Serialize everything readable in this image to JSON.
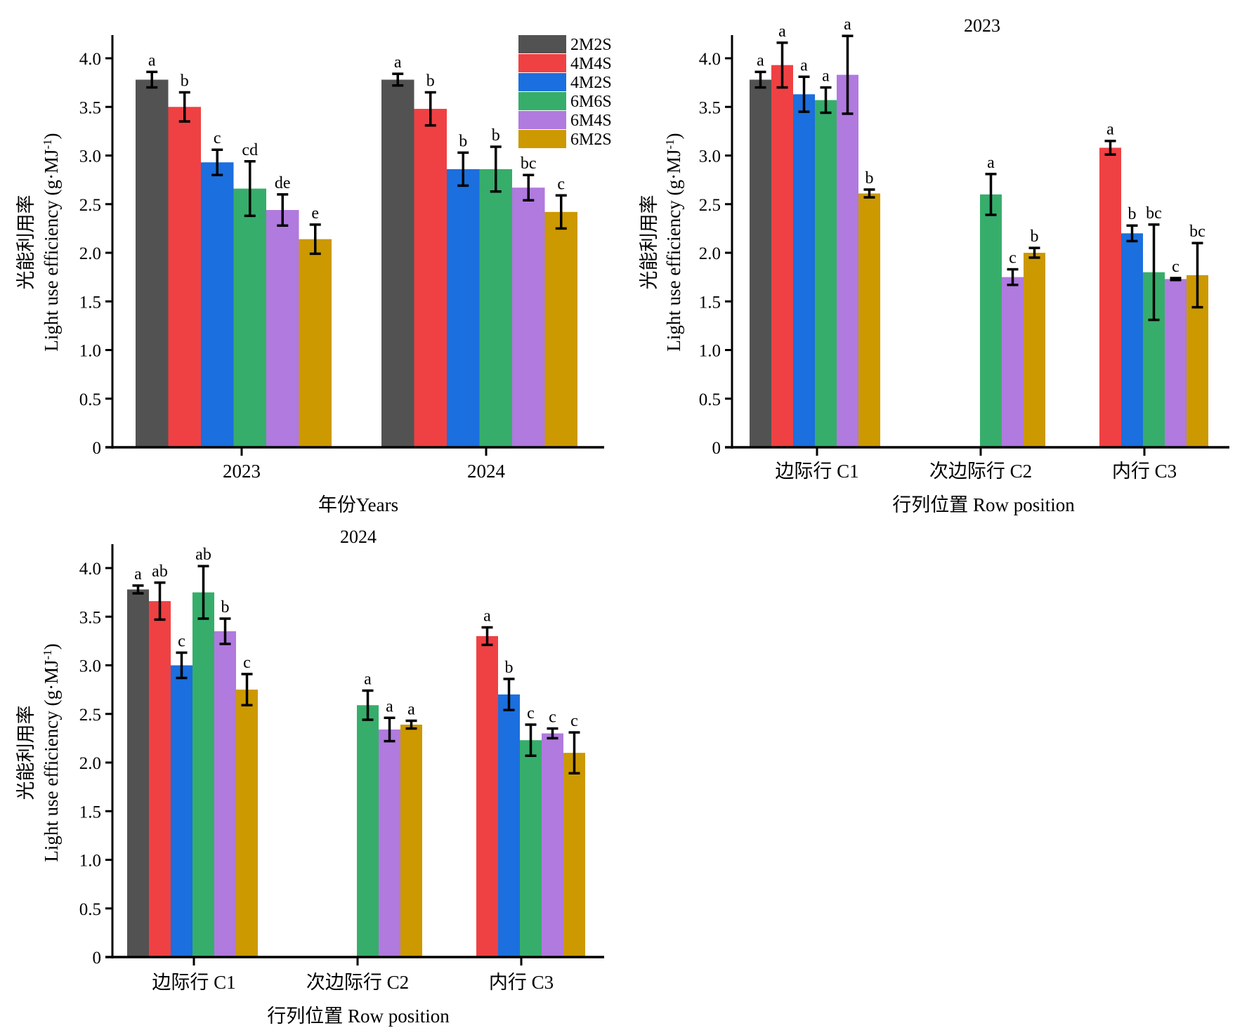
{
  "colors": {
    "2M2S": "#525252",
    "4M4S": "#ef4143",
    "4M2S": "#1b6fde",
    "6M6S": "#37ad6b",
    "6M4S": "#b07ade",
    "6M2S": "#cc9900"
  },
  "legend": {
    "placement": "top-right of first panel",
    "entries": [
      "2M2S",
      "4M4S",
      "4M2S",
      "6M6S",
      "6M4S",
      "6M2S"
    ]
  },
  "chart_data": [
    {
      "id": "years",
      "type": "bar",
      "title": "",
      "xlabel": "年份Years",
      "ylabel_cn": "光能利用率",
      "ylabel_en": "Light use efficiency (g·MJ",
      "ylabel_sup": "-1",
      "ylabel_close": ")",
      "ylim": [
        0,
        4.25
      ],
      "yticks": [
        0,
        0.5,
        1.0,
        1.5,
        2.0,
        2.5,
        3.0,
        3.5,
        4.0
      ],
      "ytick_labels": [
        "0",
        "0.5",
        "1.0",
        "1.5",
        "2.0",
        "2.5",
        "3.0",
        "3.5",
        "4.0"
      ],
      "categories": [
        "2023",
        "2024"
      ],
      "series": [
        {
          "name": "2M2S",
          "values": [
            3.78,
            3.78
          ],
          "errors": [
            0.08,
            0.06
          ],
          "letters": [
            "a",
            "a"
          ]
        },
        {
          "name": "4M4S",
          "values": [
            3.5,
            3.48
          ],
          "errors": [
            0.15,
            0.17
          ],
          "letters": [
            "b",
            "b"
          ]
        },
        {
          "name": "4M2S",
          "values": [
            2.93,
            2.86
          ],
          "errors": [
            0.13,
            0.17
          ],
          "letters": [
            "c",
            "b"
          ]
        },
        {
          "name": "6M6S",
          "values": [
            2.66,
            2.86
          ],
          "errors": [
            0.28,
            0.23
          ],
          "letters": [
            "cd",
            "b"
          ]
        },
        {
          "name": "6M4S",
          "values": [
            2.44,
            2.67
          ],
          "errors": [
            0.16,
            0.13
          ],
          "letters": [
            "de",
            "bc"
          ]
        },
        {
          "name": "6M2S",
          "values": [
            2.14,
            2.42
          ],
          "errors": [
            0.15,
            0.17
          ],
          "letters": [
            "e",
            "c"
          ]
        }
      ]
    },
    {
      "id": "row2023",
      "type": "bar",
      "title": "2023",
      "xlabel": "行列位置 Row position",
      "ylabel_cn": "光能利用率",
      "ylabel_en": "Light use efficiency (g·MJ",
      "ylabel_sup": "-1",
      "ylabel_close": ")",
      "ylim": [
        0,
        4.25
      ],
      "yticks": [
        0,
        0.5,
        1.0,
        1.5,
        2.0,
        2.5,
        3.0,
        3.5,
        4.0
      ],
      "ytick_labels": [
        "0",
        "0.5",
        "1.0",
        "1.5",
        "2.0",
        "2.5",
        "3.0",
        "3.5",
        "4.0"
      ],
      "categories": [
        "边际行 C1",
        "次边际行 C2",
        "内行 C3"
      ],
      "series": [
        {
          "name": "2M2S",
          "values": [
            3.78,
            null,
            null
          ],
          "errors": [
            0.08,
            null,
            null
          ],
          "letters": [
            "a",
            null,
            null
          ]
        },
        {
          "name": "4M4S",
          "values": [
            3.93,
            null,
            3.08
          ],
          "errors": [
            0.23,
            null,
            0.07
          ],
          "letters": [
            "a",
            null,
            "a"
          ]
        },
        {
          "name": "4M2S",
          "values": [
            3.63,
            null,
            2.2
          ],
          "errors": [
            0.18,
            null,
            0.08
          ],
          "letters": [
            "a",
            null,
            "b"
          ]
        },
        {
          "name": "6M6S",
          "values": [
            3.57,
            2.6,
            1.8
          ],
          "errors": [
            0.13,
            0.21,
            0.49
          ],
          "letters": [
            "a",
            "a",
            "bc"
          ]
        },
        {
          "name": "6M4S",
          "values": [
            3.83,
            1.75,
            1.73
          ],
          "errors": [
            0.4,
            0.08,
            0.01
          ],
          "letters": [
            "a",
            "c",
            "c"
          ]
        },
        {
          "name": "6M2S",
          "values": [
            2.61,
            2.0,
            1.77
          ],
          "errors": [
            0.04,
            0.05,
            0.33
          ],
          "letters": [
            "b",
            "b",
            "bc"
          ]
        }
      ]
    },
    {
      "id": "row2024",
      "type": "bar",
      "title": "2024",
      "xlabel": "行列位置 Row position",
      "ylabel_cn": "光能利用率",
      "ylabel_en": "Light use efficiency (g·MJ",
      "ylabel_sup": "-1",
      "ylabel_close": ")",
      "ylim": [
        0,
        4.25
      ],
      "yticks": [
        0,
        0.5,
        1.0,
        1.5,
        2.0,
        2.5,
        3.0,
        3.5,
        4.0
      ],
      "ytick_labels": [
        "0",
        "0.5",
        "1.0",
        "1.5",
        "2.0",
        "2.5",
        "3.0",
        "3.5",
        "4.0"
      ],
      "categories": [
        "边际行 C1",
        "次边际行 C2",
        "内行 C3"
      ],
      "series": [
        {
          "name": "2M2S",
          "values": [
            3.78,
            null,
            null
          ],
          "errors": [
            0.04,
            null,
            null
          ],
          "letters": [
            "a",
            null,
            null
          ]
        },
        {
          "name": "4M4S",
          "values": [
            3.66,
            null,
            3.3
          ],
          "errors": [
            0.19,
            null,
            0.09
          ],
          "letters": [
            "ab",
            null,
            "a"
          ]
        },
        {
          "name": "4M2S",
          "values": [
            3.0,
            null,
            2.7
          ],
          "errors": [
            0.13,
            null,
            0.16
          ],
          "letters": [
            "c",
            null,
            "b"
          ]
        },
        {
          "name": "6M6S",
          "values": [
            3.75,
            2.59,
            2.23
          ],
          "errors": [
            0.27,
            0.15,
            0.16
          ],
          "letters": [
            "ab",
            "a",
            "c"
          ]
        },
        {
          "name": "6M4S",
          "values": [
            3.35,
            2.34,
            2.3
          ],
          "errors": [
            0.13,
            0.12,
            0.05
          ],
          "letters": [
            "b",
            "a",
            "c"
          ]
        },
        {
          "name": "6M2S",
          "values": [
            2.75,
            2.39,
            2.1
          ],
          "errors": [
            0.16,
            0.04,
            0.21
          ],
          "letters": [
            "c",
            "a",
            "c"
          ]
        }
      ]
    }
  ]
}
